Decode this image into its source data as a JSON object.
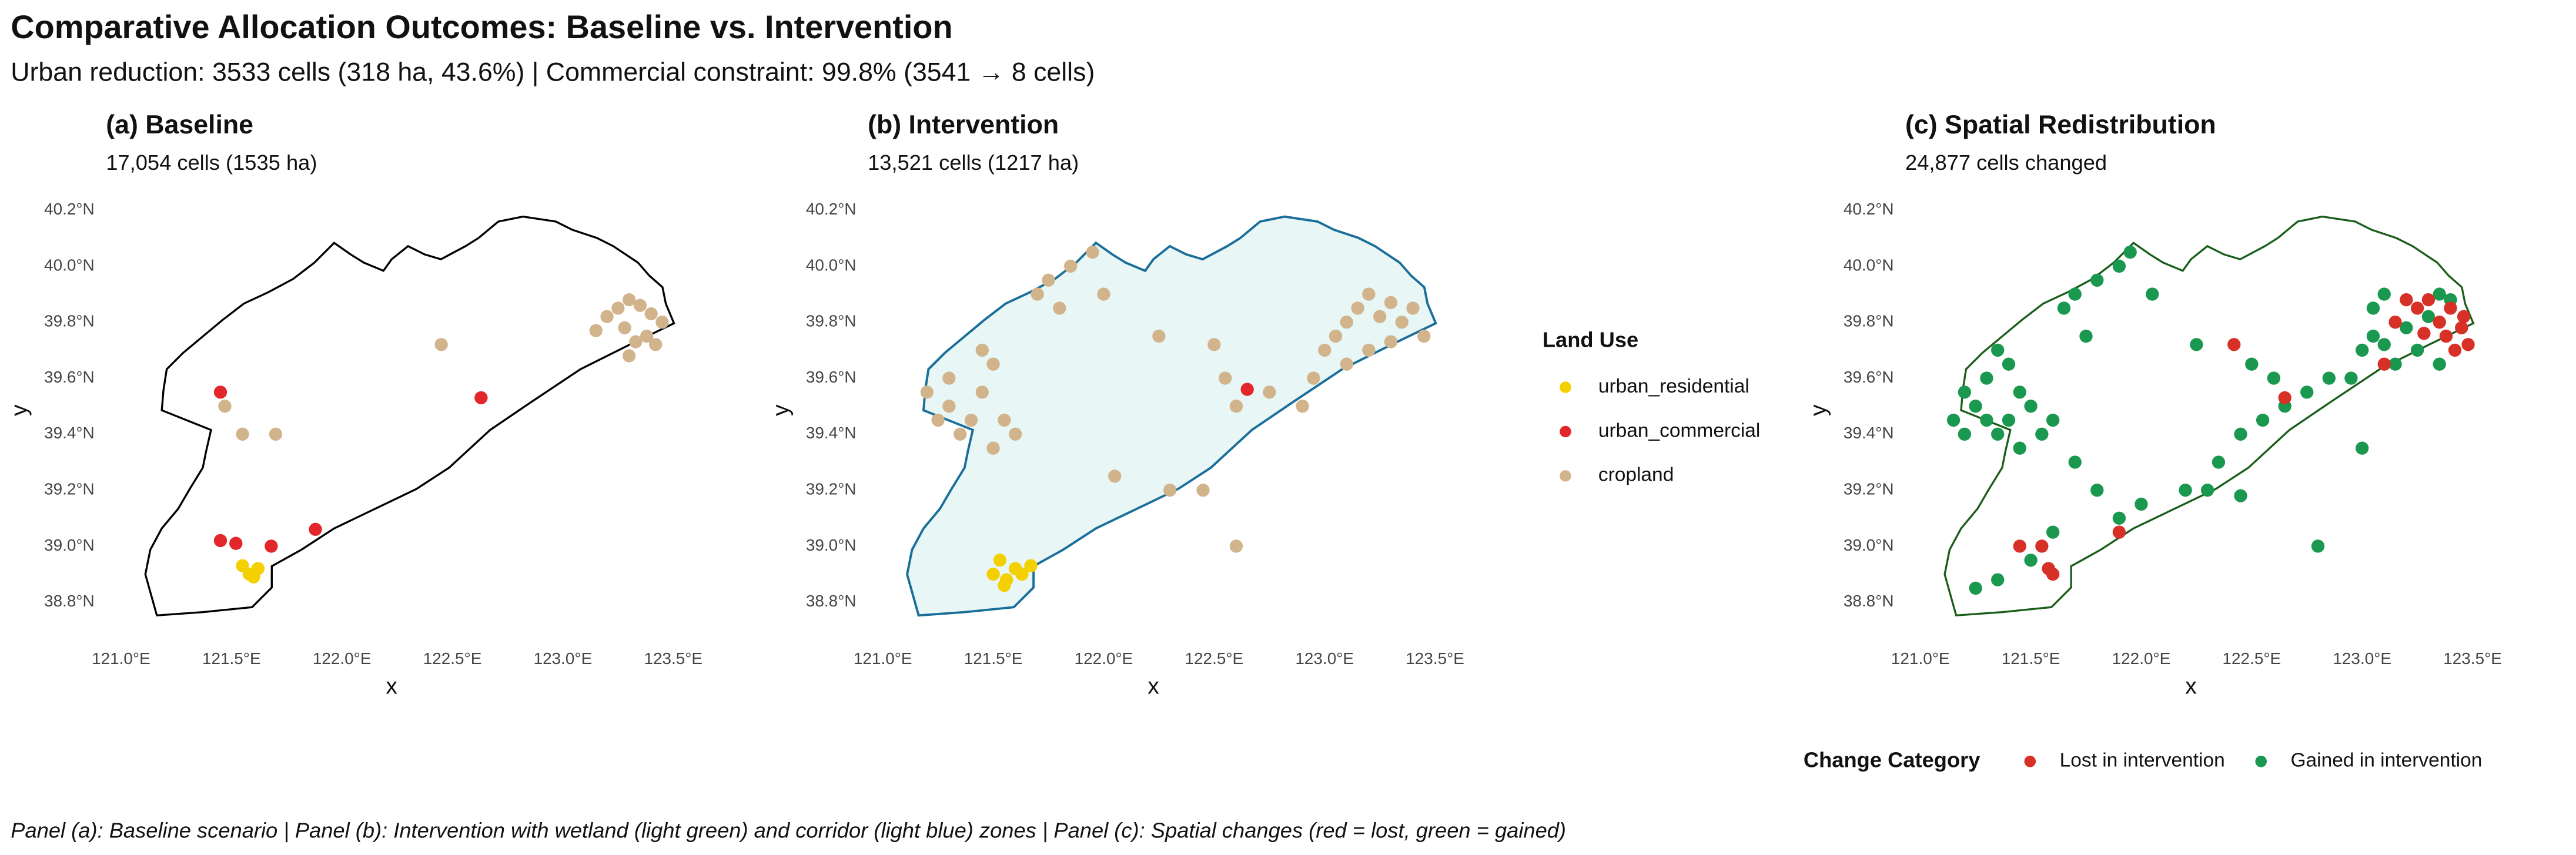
{
  "title": "Comparative Allocation Outcomes: Baseline vs. Intervention",
  "subtitle": "Urban reduction: 3533  cells (318 ha, 43.6%) | Commercial constraint: 99.8% (3541  → 8 cells)",
  "caption": "Panel (a): Baseline scenario | Panel (b): Intervention with wetland (light green) and corridor (light blue) zones | Panel (c): Spatial changes (red = lost, green = gained)",
  "chart_data": [
    {
      "type": "scatter",
      "title": "(a) Baseline",
      "subtitle": "17,054 cells (1535 ha)",
      "xlabel": "x",
      "ylabel": "y",
      "xlim": [
        120.85,
        123.6
      ],
      "ylim": [
        38.7,
        40.3
      ],
      "xticks": [
        {
          "value": 121.0,
          "label": "121.0°E"
        },
        {
          "value": 121.5,
          "label": "121.5°E"
        },
        {
          "value": 122.0,
          "label": "122.0°E"
        },
        {
          "value": 122.5,
          "label": "122.5°E"
        },
        {
          "value": 123.0,
          "label": "123.0°E"
        },
        {
          "value": 123.5,
          "label": "123.5°E"
        }
      ],
      "yticks": [
        {
          "value": 38.8,
          "label": "38.8°N"
        },
        {
          "value": 39.0,
          "label": "39.0°N"
        },
        {
          "value": 39.2,
          "label": "39.2°N"
        },
        {
          "value": 39.4,
          "label": "39.4°N"
        },
        {
          "value": 39.6,
          "label": "39.6°N"
        },
        {
          "value": 39.8,
          "label": "39.8°N"
        },
        {
          "value": 40.0,
          "label": "40.0°N"
        },
        {
          "value": 40.2,
          "label": "40.2°N"
        }
      ],
      "series": [
        {
          "color": "#f5d000",
          "x": [
            121.55,
            121.58,
            121.62,
            121.6
          ],
          "y": [
            38.93,
            38.9,
            38.92,
            38.89
          ]
        },
        {
          "color": "#e3262a",
          "x": [
            121.45,
            121.45,
            121.52,
            121.68,
            121.88,
            122.63
          ],
          "y": [
            39.55,
            39.02,
            39.01,
            39.0,
            39.06,
            39.53
          ]
        },
        {
          "color": "#d2b48c",
          "x": [
            123.2,
            123.25,
            123.3,
            123.35,
            123.4,
            123.45,
            123.28,
            123.38,
            123.42,
            123.15,
            123.33,
            122.45,
            121.47,
            121.55,
            121.7,
            123.3
          ],
          "y": [
            39.82,
            39.85,
            39.88,
            39.86,
            39.83,
            39.8,
            39.78,
            39.75,
            39.72,
            39.77,
            39.73,
            39.72,
            39.5,
            39.4,
            39.4,
            39.68
          ]
        }
      ]
    },
    {
      "type": "scatter",
      "title": "(b) Intervention",
      "subtitle": "13,521 cells (1217 ha)",
      "xlabel": "x",
      "ylabel": "y",
      "xlim": [
        120.85,
        123.6
      ],
      "ylim": [
        38.7,
        40.3
      ],
      "xticks": [
        {
          "value": 121.0,
          "label": "121.0°E"
        },
        {
          "value": 121.5,
          "label": "121.5°E"
        },
        {
          "value": 122.0,
          "label": "122.0°E"
        },
        {
          "value": 122.5,
          "label": "122.5°E"
        },
        {
          "value": 123.0,
          "label": "123.0°E"
        },
        {
          "value": 123.5,
          "label": "123.5°E"
        }
      ],
      "yticks": [
        {
          "value": 38.8,
          "label": "38.8°N"
        },
        {
          "value": 39.0,
          "label": "39.0°N"
        },
        {
          "value": 39.2,
          "label": "39.2°N"
        },
        {
          "value": 39.4,
          "label": "39.4°N"
        },
        {
          "value": 39.6,
          "label": "39.6°N"
        },
        {
          "value": 39.8,
          "label": "39.8°N"
        },
        {
          "value": 40.0,
          "label": "40.0°N"
        },
        {
          "value": 40.2,
          "label": "40.2°N"
        }
      ],
      "legend_title": "Land Use",
      "legend": "right",
      "series": [
        {
          "name": "urban_residential",
          "color": "#f5d000",
          "x": [
            121.5,
            121.53,
            121.56,
            121.6,
            121.63,
            121.67,
            121.55
          ],
          "y": [
            38.9,
            38.95,
            38.88,
            38.92,
            38.9,
            38.93,
            38.86
          ]
        },
        {
          "name": "urban_commercial",
          "color": "#e3262a",
          "x": [
            122.65
          ],
          "y": [
            39.56
          ]
        },
        {
          "name": "cropland",
          "color": "#d2b48c",
          "x": [
            121.2,
            121.25,
            121.3,
            121.35,
            121.4,
            121.45,
            121.5,
            121.55,
            121.3,
            121.6,
            121.45,
            121.5,
            121.7,
            121.75,
            121.85,
            121.95,
            121.8,
            122.0,
            122.25,
            122.5,
            122.55,
            122.6,
            122.75,
            122.9,
            122.3,
            122.45,
            122.05,
            122.6,
            123.0,
            123.05,
            123.1,
            123.15,
            123.2,
            123.25,
            123.3,
            123.35,
            123.4,
            123.45,
            123.2,
            123.1,
            122.95,
            123.3
          ],
          "y": [
            39.55,
            39.45,
            39.5,
            39.4,
            39.45,
            39.55,
            39.35,
            39.45,
            39.6,
            39.4,
            39.7,
            39.65,
            39.9,
            39.95,
            40.0,
            40.05,
            39.85,
            39.9,
            39.75,
            39.72,
            39.6,
            39.5,
            39.55,
            39.5,
            39.2,
            39.2,
            39.25,
            39.0,
            39.7,
            39.75,
            39.8,
            39.85,
            39.9,
            39.82,
            39.87,
            39.8,
            39.85,
            39.75,
            39.7,
            39.65,
            39.6,
            39.73
          ]
        }
      ]
    },
    {
      "type": "scatter",
      "title": "(c) Spatial Redistribution",
      "subtitle": "24,877 cells changed",
      "xlabel": "x",
      "ylabel": "y",
      "xlim": [
        120.85,
        123.6
      ],
      "ylim": [
        38.7,
        40.3
      ],
      "xticks": [
        {
          "value": 121.0,
          "label": "121.0°E"
        },
        {
          "value": 121.5,
          "label": "121.5°E"
        },
        {
          "value": 122.0,
          "label": "122.0°E"
        },
        {
          "value": 122.5,
          "label": "122.5°E"
        },
        {
          "value": 123.0,
          "label": "123.0°E"
        },
        {
          "value": 123.5,
          "label": "123.5°E"
        }
      ],
      "yticks": [
        {
          "value": 38.8,
          "label": "38.8°N"
        },
        {
          "value": 39.0,
          "label": "39.0°N"
        },
        {
          "value": 39.2,
          "label": "39.2°N"
        },
        {
          "value": 39.4,
          "label": "39.4°N"
        },
        {
          "value": 39.6,
          "label": "39.6°N"
        },
        {
          "value": 39.8,
          "label": "39.8°N"
        },
        {
          "value": 40.0,
          "label": "40.0°N"
        },
        {
          "value": 40.2,
          "label": "40.2°N"
        }
      ],
      "legend_title": "Change Category",
      "legend": "bottom",
      "series": [
        {
          "name": "Gained in intervention",
          "color": "#1a9850",
          "x": [
            121.15,
            121.2,
            121.25,
            121.3,
            121.35,
            121.4,
            121.45,
            121.3,
            121.35,
            121.4,
            121.5,
            121.55,
            121.6,
            121.2,
            121.45,
            121.65,
            121.7,
            121.8,
            121.9,
            121.95,
            122.05,
            121.75,
            121.7,
            121.8,
            121.9,
            122.0,
            122.2,
            122.35,
            122.45,
            122.55,
            122.65,
            122.75,
            122.85,
            122.95,
            121.6,
            121.5,
            121.35,
            121.25,
            122.25,
            122.5,
            122.6,
            122.3,
            122.45,
            122.8,
            123.0,
            123.0,
            123.05,
            123.1,
            123.15,
            123.2,
            123.25,
            123.3,
            123.35,
            123.4,
            123.05,
            123.1,
            123.35
          ],
          "y": [
            39.45,
            39.4,
            39.5,
            39.45,
            39.4,
            39.45,
            39.35,
            39.6,
            39.7,
            39.65,
            39.5,
            39.4,
            39.45,
            39.55,
            39.55,
            39.85,
            39.9,
            39.95,
            40.0,
            40.05,
            39.9,
            39.75,
            39.3,
            39.2,
            39.1,
            39.15,
            39.2,
            39.3,
            39.4,
            39.45,
            39.5,
            39.55,
            39.6,
            39.6,
            39.05,
            38.95,
            38.88,
            38.85,
            39.72,
            39.65,
            39.6,
            39.2,
            39.18,
            39.0,
            39.35,
            39.7,
            39.75,
            39.72,
            39.65,
            39.78,
            39.7,
            39.82,
            39.9,
            39.88,
            39.85,
            39.9,
            39.65
          ]
        },
        {
          "name": "Lost in intervention",
          "color": "#d73027",
          "x": [
            121.45,
            121.55,
            121.58,
            121.6,
            121.9,
            122.42,
            122.65,
            123.1,
            123.15,
            123.25,
            123.3,
            123.35,
            123.4,
            123.45,
            123.48,
            123.42,
            123.38,
            123.2,
            123.46,
            123.28
          ],
          "y": [
            39.0,
            39.0,
            38.92,
            38.9,
            39.05,
            39.72,
            39.53,
            39.65,
            39.8,
            39.85,
            39.88,
            39.8,
            39.85,
            39.78,
            39.72,
            39.7,
            39.75,
            39.88,
            39.82,
            39.76
          ]
        }
      ]
    }
  ]
}
